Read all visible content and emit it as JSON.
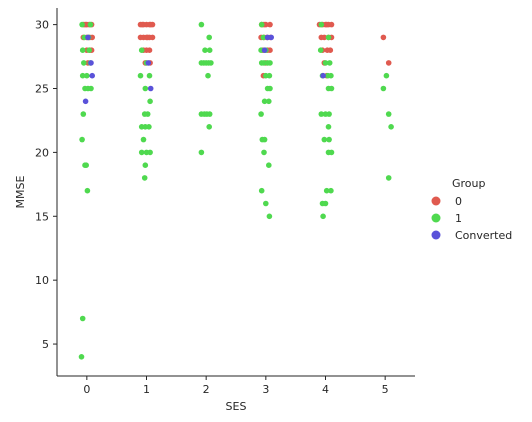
{
  "chart_data": {
    "type": "scatter",
    "subtype": "strip",
    "xlabel": "SES",
    "ylabel": "MMSE",
    "x_categories": [
      0,
      1,
      2,
      3,
      4,
      5
    ],
    "xlim": [
      -0.5,
      5.5
    ],
    "ylim": [
      2.5,
      31.3
    ],
    "yticks": [
      5,
      10,
      15,
      20,
      25,
      30
    ],
    "grid": false,
    "legend": {
      "title": "Group",
      "placement": "right",
      "entries": [
        {
          "label": "0",
          "color": "#e05a4f"
        },
        {
          "label": "1",
          "color": "#4fd94f"
        },
        {
          "label": "Converted",
          "color": "#5a52d9"
        }
      ]
    },
    "series": [
      {
        "group": "0",
        "color": "#e05a4f",
        "points": [
          [
            -0.05,
            30
          ],
          [
            0.0,
            30
          ],
          [
            0.04,
            30
          ],
          [
            0.08,
            30
          ],
          [
            -0.02,
            30
          ],
          [
            -0.06,
            29
          ],
          [
            0.0,
            29
          ],
          [
            0.05,
            29
          ],
          [
            0.09,
            29
          ],
          [
            0.0,
            28
          ],
          [
            0.05,
            28
          ],
          [
            0.08,
            28
          ],
          [
            0.02,
            27
          ],
          [
            0.9,
            30
          ],
          [
            0.95,
            30
          ],
          [
            1.0,
            30
          ],
          [
            1.05,
            30
          ],
          [
            1.1,
            30
          ],
          [
            0.93,
            30
          ],
          [
            1.07,
            30
          ],
          [
            0.9,
            29
          ],
          [
            0.95,
            29
          ],
          [
            1.0,
            29
          ],
          [
            1.05,
            29
          ],
          [
            1.1,
            29
          ],
          [
            1.02,
            29
          ],
          [
            0.95,
            28
          ],
          [
            1.05,
            28
          ],
          [
            1.0,
            28
          ],
          [
            0.98,
            27
          ],
          [
            1.06,
            27
          ],
          [
            2.93,
            30
          ],
          [
            3.0,
            30
          ],
          [
            3.07,
            30
          ],
          [
            2.97,
            30
          ],
          [
            2.92,
            29
          ],
          [
            2.97,
            29
          ],
          [
            3.02,
            29
          ],
          [
            3.08,
            29
          ],
          [
            2.95,
            28
          ],
          [
            3.03,
            28
          ],
          [
            3.07,
            28
          ],
          [
            3.0,
            27
          ],
          [
            2.96,
            26
          ],
          [
            3.9,
            30
          ],
          [
            3.95,
            30
          ],
          [
            4.0,
            30
          ],
          [
            4.05,
            30
          ],
          [
            4.1,
            30
          ],
          [
            4.02,
            30
          ],
          [
            3.93,
            29
          ],
          [
            3.98,
            29
          ],
          [
            4.05,
            29
          ],
          [
            4.1,
            29
          ],
          [
            3.95,
            28
          ],
          [
            4.03,
            28
          ],
          [
            4.08,
            28
          ],
          [
            3.98,
            27
          ],
          [
            4.02,
            26
          ],
          [
            4.97,
            29
          ],
          [
            5.06,
            27
          ]
        ]
      },
      {
        "group": "1",
        "color": "#4fd94f",
        "points": [
          [
            -0.08,
            30
          ],
          [
            0.06,
            30
          ],
          [
            -0.04,
            29
          ],
          [
            0.03,
            29
          ],
          [
            -0.07,
            28
          ],
          [
            0.04,
            28
          ],
          [
            -0.05,
            27
          ],
          [
            0.06,
            27
          ],
          [
            -0.07,
            26
          ],
          [
            0.0,
            26
          ],
          [
            -0.03,
            25
          ],
          [
            0.02,
            25
          ],
          [
            0.07,
            25
          ],
          [
            -0.06,
            23
          ],
          [
            -0.08,
            21
          ],
          [
            -0.03,
            19
          ],
          [
            -0.01,
            19
          ],
          [
            0.01,
            17
          ],
          [
            -0.07,
            7
          ],
          [
            -0.09,
            4
          ],
          [
            0.92,
            28
          ],
          [
            1.0,
            27
          ],
          [
            0.9,
            26
          ],
          [
            1.05,
            26
          ],
          [
            0.98,
            25
          ],
          [
            1.06,
            24
          ],
          [
            1.02,
            23
          ],
          [
            0.97,
            23
          ],
          [
            0.92,
            22
          ],
          [
            0.98,
            22
          ],
          [
            1.04,
            22
          ],
          [
            0.95,
            21
          ],
          [
            0.92,
            20
          ],
          [
            1.0,
            20
          ],
          [
            1.06,
            20
          ],
          [
            0.98,
            19
          ],
          [
            0.97,
            18
          ],
          [
            1.92,
            30
          ],
          [
            2.05,
            29
          ],
          [
            1.98,
            28
          ],
          [
            2.06,
            28
          ],
          [
            1.92,
            27
          ],
          [
            1.96,
            27
          ],
          [
            2.0,
            27
          ],
          [
            2.04,
            27
          ],
          [
            2.08,
            27
          ],
          [
            2.03,
            26
          ],
          [
            1.92,
            23
          ],
          [
            1.97,
            23
          ],
          [
            2.01,
            23
          ],
          [
            2.06,
            23
          ],
          [
            2.05,
            22
          ],
          [
            1.92,
            20
          ],
          [
            2.93,
            30
          ],
          [
            2.96,
            29
          ],
          [
            2.92,
            28
          ],
          [
            3.0,
            28
          ],
          [
            2.93,
            27
          ],
          [
            2.97,
            27
          ],
          [
            3.03,
            27
          ],
          [
            3.07,
            27
          ],
          [
            3.0,
            26
          ],
          [
            3.06,
            26
          ],
          [
            3.03,
            25
          ],
          [
            3.07,
            25
          ],
          [
            2.98,
            24
          ],
          [
            3.05,
            24
          ],
          [
            2.92,
            23
          ],
          [
            2.94,
            21
          ],
          [
            2.98,
            21
          ],
          [
            2.97,
            20
          ],
          [
            3.05,
            19
          ],
          [
            2.93,
            17
          ],
          [
            3.0,
            16
          ],
          [
            3.06,
            15
          ],
          [
            3.93,
            30
          ],
          [
            4.05,
            29
          ],
          [
            3.92,
            28
          ],
          [
            4.0,
            27
          ],
          [
            4.07,
            27
          ],
          [
            3.95,
            26
          ],
          [
            4.04,
            26
          ],
          [
            4.09,
            26
          ],
          [
            4.05,
            25
          ],
          [
            4.1,
            25
          ],
          [
            3.93,
            23
          ],
          [
            4.0,
            23
          ],
          [
            4.06,
            23
          ],
          [
            4.05,
            22
          ],
          [
            3.98,
            21
          ],
          [
            4.06,
            21
          ],
          [
            4.05,
            20
          ],
          [
            4.1,
            20
          ],
          [
            4.02,
            17
          ],
          [
            4.09,
            17
          ],
          [
            3.95,
            16
          ],
          [
            4.0,
            16
          ],
          [
            3.96,
            15
          ],
          [
            5.02,
            26
          ],
          [
            4.97,
            25
          ],
          [
            5.06,
            23
          ],
          [
            5.1,
            22
          ],
          [
            5.06,
            18
          ]
        ]
      },
      {
        "group": "Converted",
        "color": "#5a52d9",
        "points": [
          [
            0.02,
            29
          ],
          [
            0.07,
            27
          ],
          [
            0.09,
            26
          ],
          [
            -0.02,
            24
          ],
          [
            1.03,
            27
          ],
          [
            1.07,
            25
          ],
          [
            3.03,
            29
          ],
          [
            2.98,
            28
          ],
          [
            3.09,
            29
          ],
          [
            3.96,
            26
          ]
        ]
      }
    ]
  }
}
